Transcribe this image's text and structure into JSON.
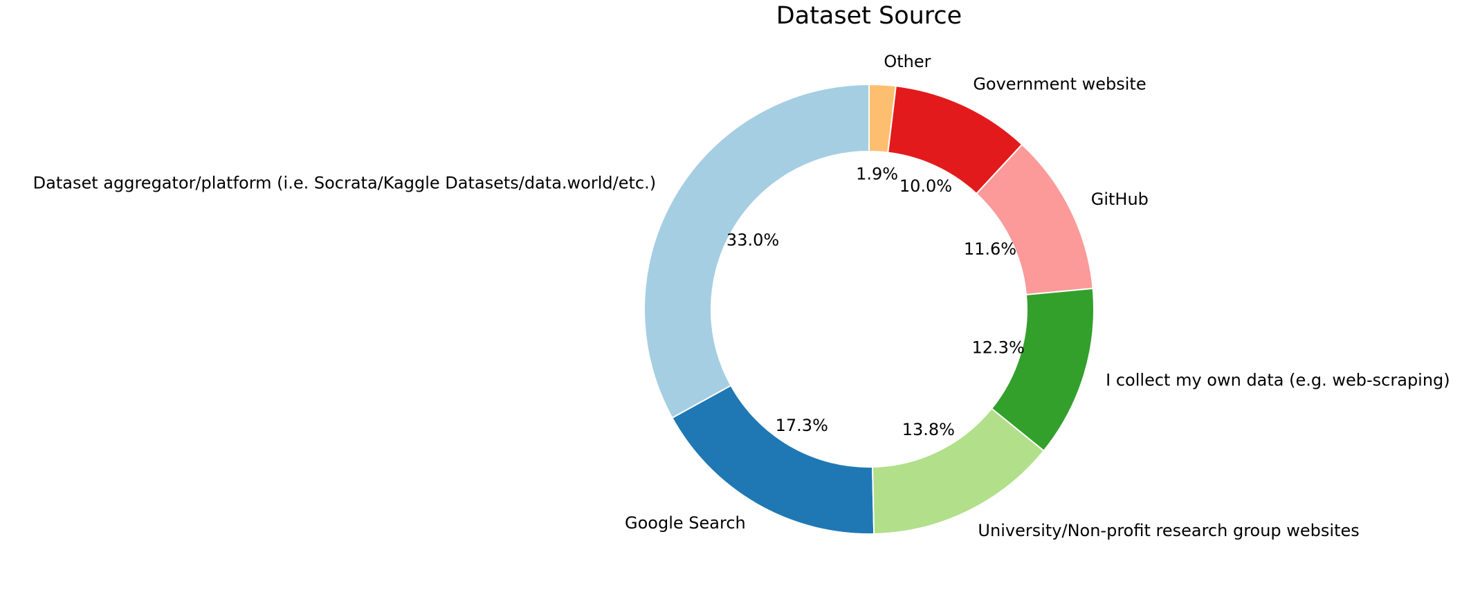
{
  "chart_data": {
    "type": "donut",
    "title": "Dataset Source",
    "categories": [
      "Dataset aggregator/platform (i.e. Socrata/Kaggle Datasets/data.world/etc.)",
      "Google Search",
      "University/Non-profit research group websites",
      "I collect my own data (e.g. web-scraping)",
      "GitHub",
      "Government website",
      "Other"
    ],
    "values": [
      33.0,
      17.3,
      13.8,
      12.3,
      11.6,
      10.0,
      1.9
    ],
    "value_labels": [
      "33.0%",
      "17.3%",
      "13.8%",
      "12.3%",
      "11.6%",
      "10.0%",
      "1.9%"
    ],
    "colors": [
      "#a6cee3",
      "#1f78b4",
      "#b2df8a",
      "#33a02c",
      "#fb9a99",
      "#e31a1c",
      "#fdbf6f"
    ]
  }
}
